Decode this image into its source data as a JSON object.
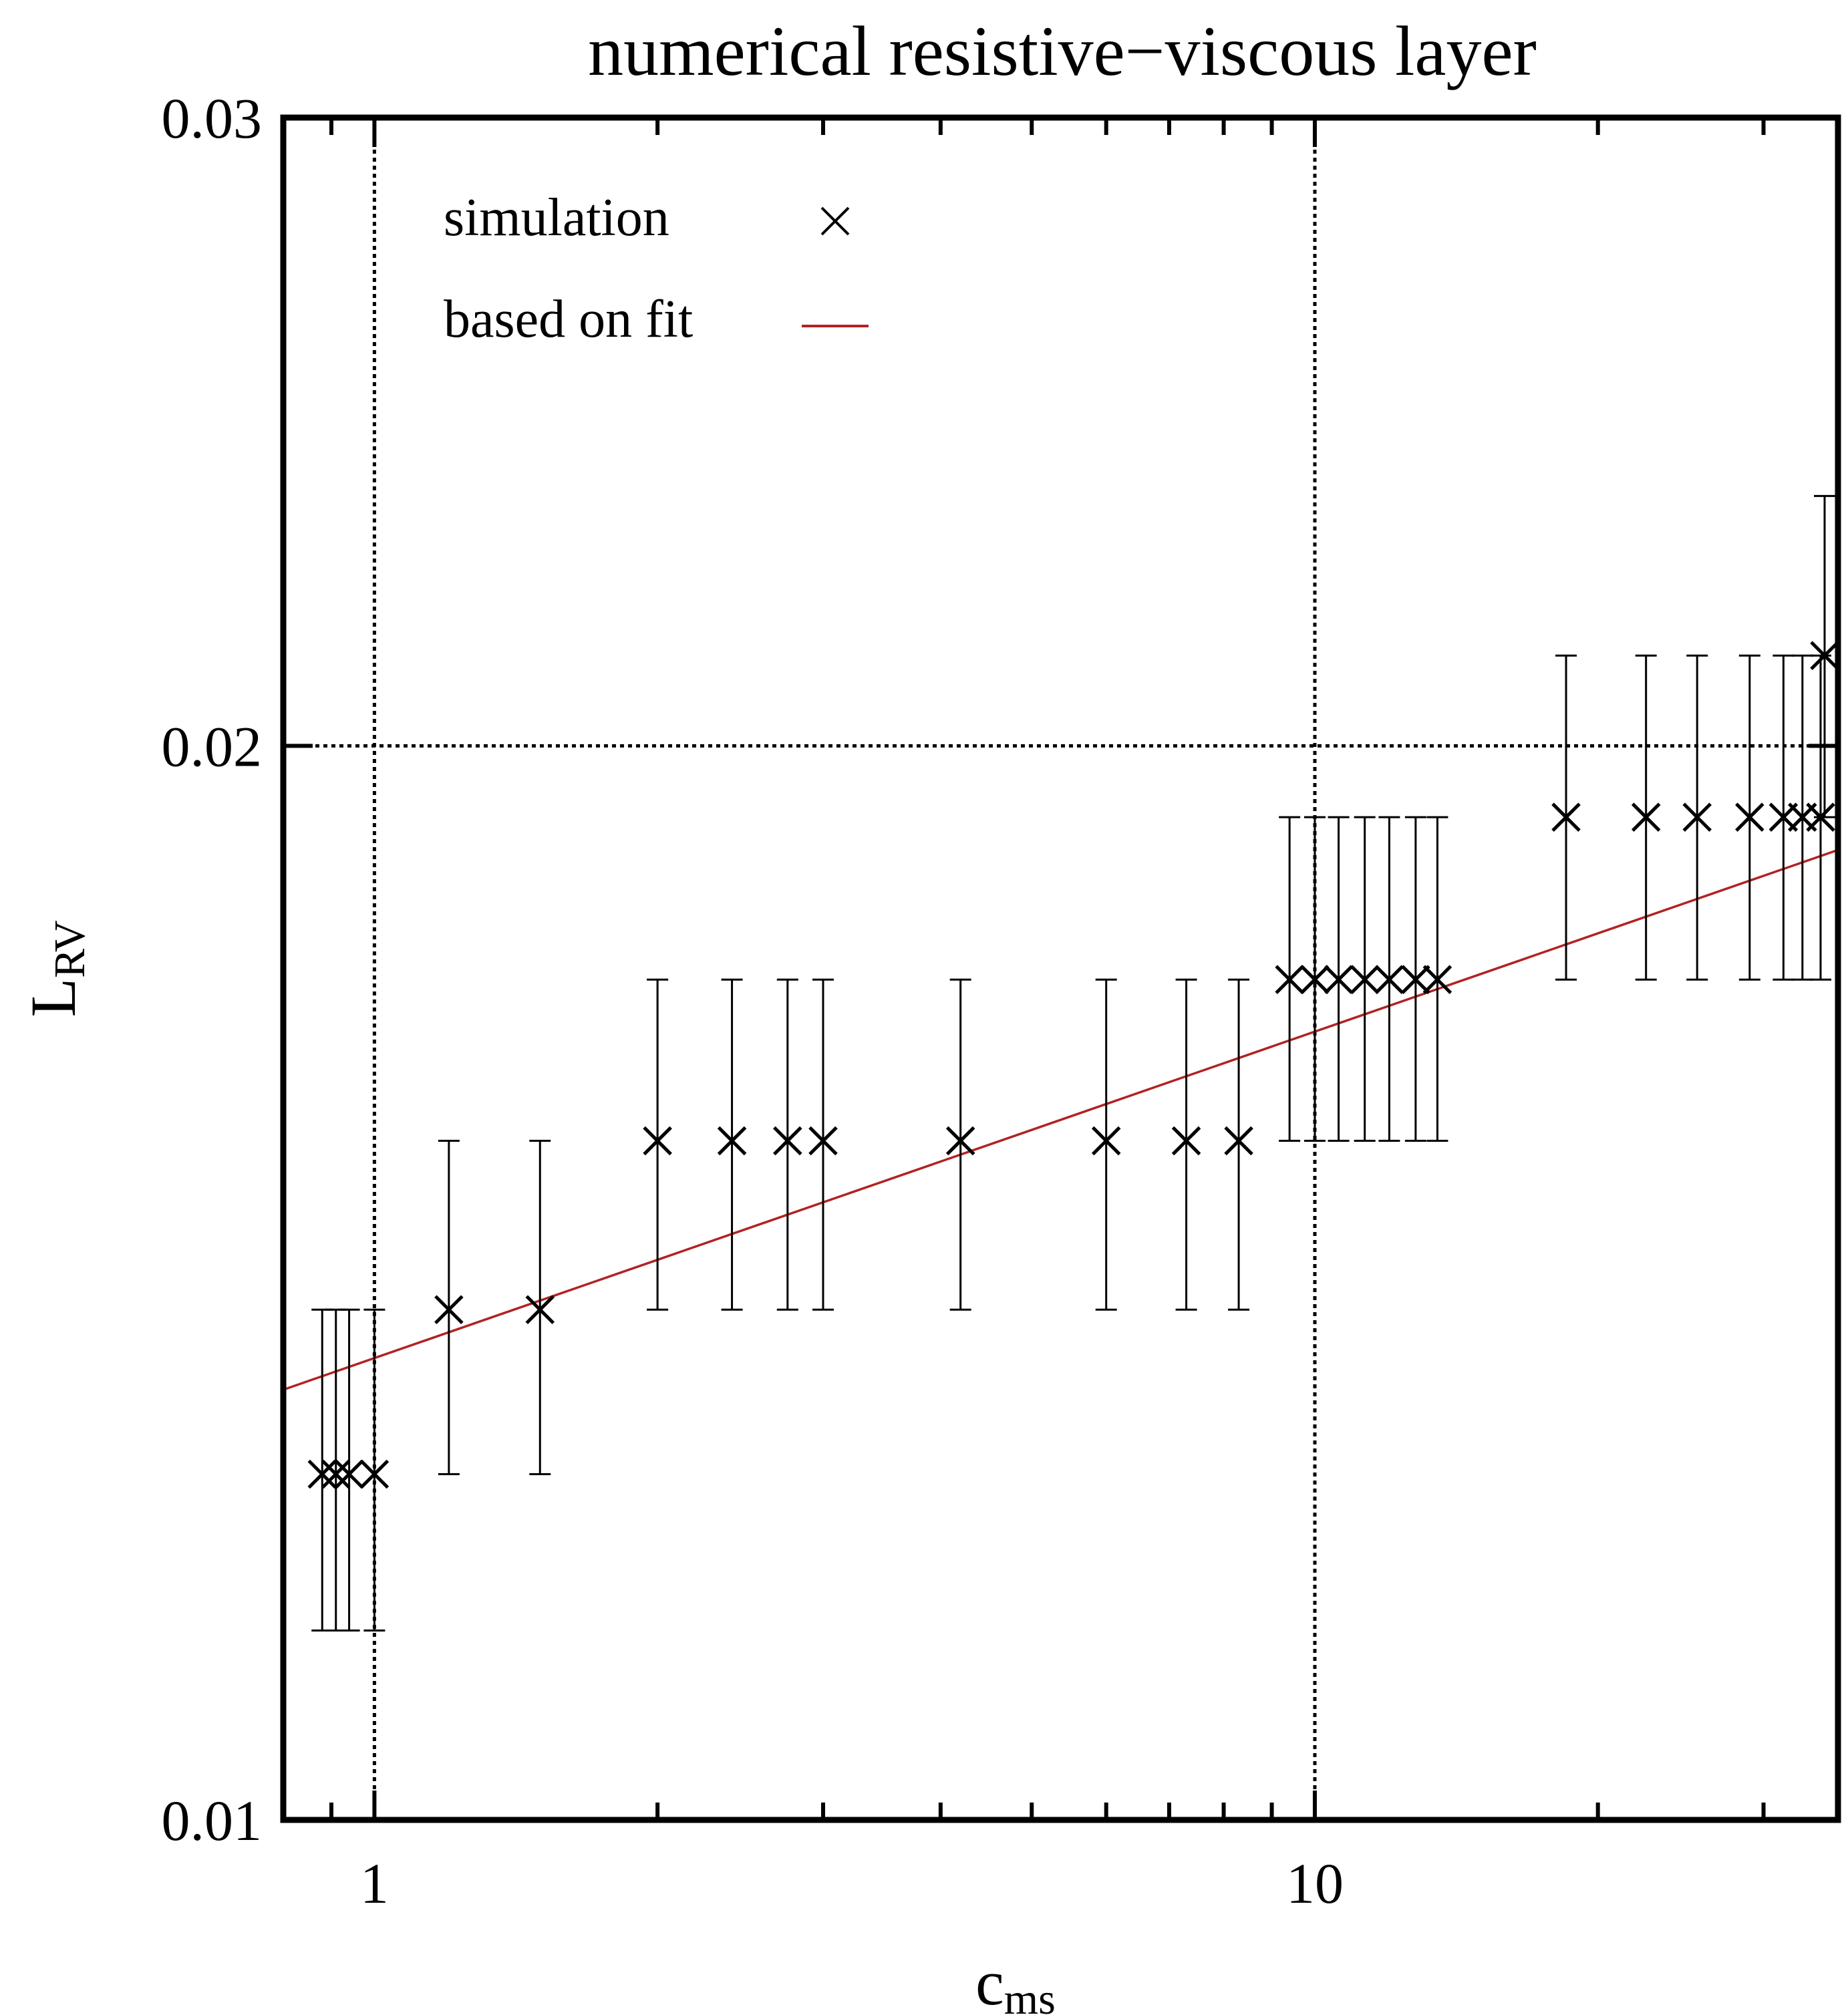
{
  "chart_data": {
    "type": "scatter",
    "title": "numerical resistive−viscous layer",
    "xlabel": "c",
    "xlabel_sub": "ms",
    "ylabel": "L",
    "ylabel_sub": "RV",
    "xscale": "log",
    "yscale": "log",
    "xlim": [
      0.8,
      36
    ],
    "ylim": [
      0.01,
      0.03
    ],
    "xticks": [
      1,
      10
    ],
    "xtick_labels": [
      "1",
      "10"
    ],
    "yticks": [
      0.01,
      0.02,
      0.03
    ],
    "ytick_labels": [
      "0.01",
      "0.02",
      "0.03"
    ],
    "reference_lines": {
      "x": [
        1,
        10
      ],
      "y": [
        0.02
      ]
    },
    "legend": {
      "position": "top-left",
      "entries": [
        "simulation",
        "based on fit"
      ]
    },
    "series": [
      {
        "name": "simulation",
        "marker": "x",
        "color": "#000000",
        "points": [
          {
            "x": 0.88,
            "y": 0.0125,
            "err_lo": 0.0113,
            "err_hi": 0.0139
          },
          {
            "x": 0.91,
            "y": 0.0125,
            "err_lo": 0.0113,
            "err_hi": 0.0139
          },
          {
            "x": 0.94,
            "y": 0.0125,
            "err_lo": 0.0113,
            "err_hi": 0.0139
          },
          {
            "x": 1.0,
            "y": 0.0125,
            "err_lo": 0.0113,
            "err_hi": 0.0139
          },
          {
            "x": 1.2,
            "y": 0.0139,
            "err_lo": 0.0125,
            "err_hi": 0.0155
          },
          {
            "x": 1.5,
            "y": 0.0139,
            "err_lo": 0.0125,
            "err_hi": 0.0155
          },
          {
            "x": 2.0,
            "y": 0.0155,
            "err_lo": 0.0139,
            "err_hi": 0.0172
          },
          {
            "x": 2.4,
            "y": 0.0155,
            "err_lo": 0.0139,
            "err_hi": 0.0172
          },
          {
            "x": 2.75,
            "y": 0.0155,
            "err_lo": 0.0139,
            "err_hi": 0.0172
          },
          {
            "x": 3.0,
            "y": 0.0155,
            "err_lo": 0.0139,
            "err_hi": 0.0172
          },
          {
            "x": 4.2,
            "y": 0.0155,
            "err_lo": 0.0139,
            "err_hi": 0.0172
          },
          {
            "x": 6.0,
            "y": 0.0155,
            "err_lo": 0.0139,
            "err_hi": 0.0172
          },
          {
            "x": 7.3,
            "y": 0.0155,
            "err_lo": 0.0139,
            "err_hi": 0.0172
          },
          {
            "x": 8.3,
            "y": 0.0155,
            "err_lo": 0.0139,
            "err_hi": 0.0172
          },
          {
            "x": 9.4,
            "y": 0.0172,
            "err_lo": 0.0155,
            "err_hi": 0.0191
          },
          {
            "x": 10.0,
            "y": 0.0172,
            "err_lo": 0.0155,
            "err_hi": 0.0191
          },
          {
            "x": 10.6,
            "y": 0.0172,
            "err_lo": 0.0155,
            "err_hi": 0.0191
          },
          {
            "x": 11.3,
            "y": 0.0172,
            "err_lo": 0.0155,
            "err_hi": 0.0191
          },
          {
            "x": 12.0,
            "y": 0.0172,
            "err_lo": 0.0155,
            "err_hi": 0.0191
          },
          {
            "x": 12.8,
            "y": 0.0172,
            "err_lo": 0.0155,
            "err_hi": 0.0191
          },
          {
            "x": 13.5,
            "y": 0.0172,
            "err_lo": 0.0155,
            "err_hi": 0.0191
          },
          {
            "x": 18.5,
            "y": 0.0191,
            "err_lo": 0.0172,
            "err_hi": 0.0212
          },
          {
            "x": 22.5,
            "y": 0.0191,
            "err_lo": 0.0172,
            "err_hi": 0.0212
          },
          {
            "x": 25.5,
            "y": 0.0191,
            "err_lo": 0.0172,
            "err_hi": 0.0212
          },
          {
            "x": 29.0,
            "y": 0.0191,
            "err_lo": 0.0172,
            "err_hi": 0.0212
          },
          {
            "x": 31.5,
            "y": 0.0191,
            "err_lo": 0.0172,
            "err_hi": 0.0212
          },
          {
            "x": 33.0,
            "y": 0.0191,
            "err_lo": 0.0172,
            "err_hi": 0.0212
          },
          {
            "x": 34.5,
            "y": 0.0191,
            "err_lo": 0.0172,
            "err_hi": 0.0212
          },
          {
            "x": 38.0,
            "y": 0.0212,
            "err_lo": 0.0191,
            "err_hi": 0.0235
          }
        ]
      },
      {
        "name": "based on fit",
        "type": "line",
        "color": "#b22222",
        "x": [
          0.8,
          36
        ],
        "y": [
          0.0132,
          0.0187
        ]
      }
    ]
  }
}
